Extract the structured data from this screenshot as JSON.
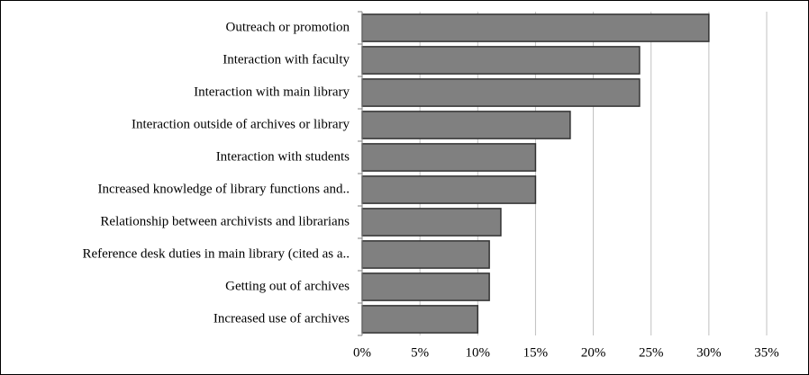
{
  "chart_data": {
    "type": "barh",
    "categories": [
      "Outreach or promotion",
      "Interaction with faculty",
      "Interaction with main library",
      "Interaction outside of archives or library",
      "Interaction with students",
      "Increased knowledge of library functions and..",
      "Relationship between archivists and librarians",
      "Reference desk duties in main library (cited as a..",
      "Getting out of archives",
      "Increased use of archives"
    ],
    "values": [
      30,
      24,
      24,
      18,
      15,
      15,
      12,
      11,
      11,
      10
    ],
    "color": "#808080",
    "xlim": [
      0,
      35
    ],
    "xticks": [
      {
        "value": 0,
        "label": "0%"
      },
      {
        "value": 5,
        "label": "5%"
      },
      {
        "value": 10,
        "label": "10%"
      },
      {
        "value": 15,
        "label": "15%"
      },
      {
        "value": 20,
        "label": "20%"
      },
      {
        "value": 25,
        "label": "25%"
      },
      {
        "value": 30,
        "label": "30%"
      },
      {
        "value": 35,
        "label": "35%"
      }
    ],
    "grid": true
  }
}
